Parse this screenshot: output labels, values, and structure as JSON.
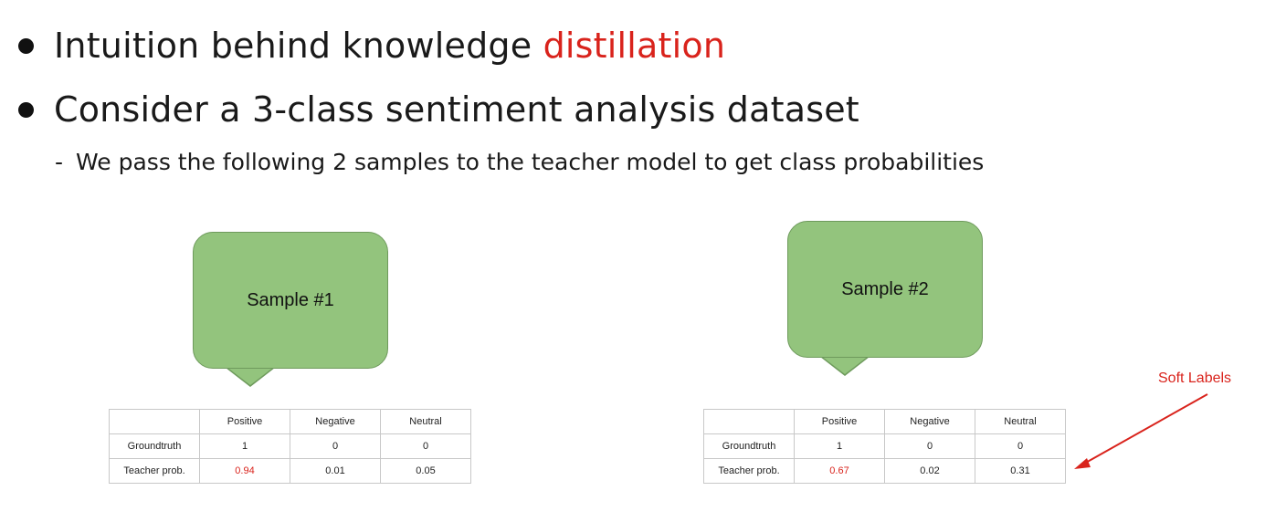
{
  "bullets": [
    {
      "prefix": "Intuition behind knowledge ",
      "accent": "distillation"
    },
    {
      "text": "Consider a 3-class sentiment analysis dataset"
    }
  ],
  "sub_bullet": {
    "dash": "-",
    "text": "We pass the following 2 samples to the teacher model to get class probabilities"
  },
  "samples": [
    {
      "label": "Sample #1",
      "table": {
        "headers": [
          "",
          "Positive",
          "Negative",
          "Neutral"
        ],
        "rows": [
          [
            "Groundtruth",
            "1",
            "0",
            "0"
          ],
          [
            "Teacher prob.",
            "0.94",
            "0.01",
            "0.05"
          ]
        ]
      }
    },
    {
      "label": "Sample #2",
      "table": {
        "headers": [
          "",
          "Positive",
          "Negative",
          "Neutral"
        ],
        "rows": [
          [
            "Groundtruth",
            "1",
            "0",
            "0"
          ],
          [
            "Teacher prob.",
            "0.67",
            "0.02",
            "0.31"
          ]
        ]
      }
    }
  ],
  "annotation": {
    "text": "Soft Labels",
    "color": "#d9231c"
  },
  "colors": {
    "accent": "#d9231c",
    "callout_fill": "#93c47d"
  }
}
